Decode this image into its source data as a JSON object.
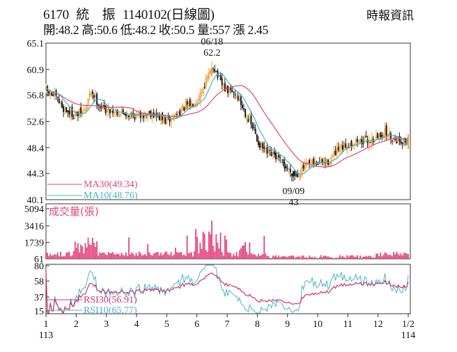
{
  "header": {
    "code": "6170",
    "name": "統　振",
    "date": "1140102",
    "kind": "(日線圖)",
    "source": "時報資訊",
    "ohlc_line": "開:48.2 高:50.6 低:48.2 收:50.5 量:557 漲 2.45"
  },
  "colors": {
    "up": "#f2a03a",
    "down": "#1a1a1a",
    "ma30": "#e0457a",
    "ma10": "#3fb7c8",
    "volume": "#e3457e",
    "rsi30": "#d1336e",
    "rsi10": "#45b5c7",
    "frame": "#333333"
  },
  "chart_data": [
    {
      "type": "candlestick",
      "title": "6170 統振 1140102(日線圖)",
      "ylim": [
        40.1,
        65.1
      ],
      "yticks": [
        65.1,
        60.9,
        56.8,
        52.6,
        48.4,
        44.3,
        40.1
      ],
      "ytick_labels": [
        "65.1",
        "60.9",
        "56.8",
        "52.6",
        "48.4",
        "44.3",
        "40.1"
      ],
      "xticks": [
        "1",
        "2",
        "3",
        "4",
        "5",
        "6",
        "7",
        "8",
        "9",
        "10",
        "11",
        "12",
        "1/2"
      ],
      "year_labels": [
        "113",
        "114"
      ],
      "monthly_path": [
        [
          1,
          57.5
        ],
        [
          1.3,
          56.5
        ],
        [
          1.6,
          54.5
        ],
        [
          2,
          53.5
        ],
        [
          2.3,
          54.5
        ],
        [
          2.5,
          57.5
        ],
        [
          2.8,
          55
        ],
        [
          3,
          54.5
        ],
        [
          3.5,
          54
        ],
        [
          4,
          53.5
        ],
        [
          4.5,
          54
        ],
        [
          5,
          52.5
        ],
        [
          5.5,
          54.5
        ],
        [
          6,
          56
        ],
        [
          6.3,
          59
        ],
        [
          6.55,
          61.5
        ],
        [
          6.8,
          58.5
        ],
        [
          7,
          57.5
        ],
        [
          7.3,
          57
        ],
        [
          7.6,
          54
        ],
        [
          7.9,
          51
        ],
        [
          8,
          49.5
        ],
        [
          8.3,
          47.5
        ],
        [
          8.6,
          47
        ],
        [
          9,
          45
        ],
        [
          9.3,
          44
        ],
        [
          9.6,
          45.5
        ],
        [
          10,
          46
        ],
        [
          10.3,
          46
        ],
        [
          10.6,
          47.5
        ],
        [
          11,
          49
        ],
        [
          11.3,
          49.5
        ],
        [
          11.6,
          49.5
        ],
        [
          12,
          50
        ],
        [
          12.2,
          51
        ],
        [
          12.5,
          50
        ],
        [
          12.8,
          49.5
        ],
        [
          13,
          49.5
        ]
      ],
      "annotations": [
        {
          "date": "06/18",
          "value": "62.2",
          "at": [
            6.5,
            62.2
          ]
        },
        {
          "date": "09/09",
          "value": "43",
          "at": [
            9.2,
            43
          ]
        }
      ],
      "legend": [
        {
          "name": "MA30",
          "label": "MA30(49.34)",
          "value": 49.34
        },
        {
          "name": "MA10",
          "label": "MA10(48.76)",
          "value": 48.76
        }
      ]
    },
    {
      "type": "bar",
      "title": "成交量(張)",
      "ylim": [
        61,
        5094
      ],
      "yticks": [
        5094,
        3416,
        1739,
        61
      ],
      "ytick_labels": [
        "5094",
        "3416",
        "1739",
        "61"
      ],
      "note": "daily volume bars"
    },
    {
      "type": "line",
      "title": "RSI",
      "ylim": [
        15,
        80
      ],
      "yticks": [
        80,
        58,
        37,
        15
      ],
      "ytick_labels": [
        "80",
        "58",
        "37",
        "15"
      ],
      "series": [
        {
          "name": "RSI30",
          "label": "RSI30(56.91)",
          "value": 56.91
        },
        {
          "name": "RSI10",
          "label": "RSI10(65.77)",
          "value": 65.77
        }
      ]
    }
  ]
}
